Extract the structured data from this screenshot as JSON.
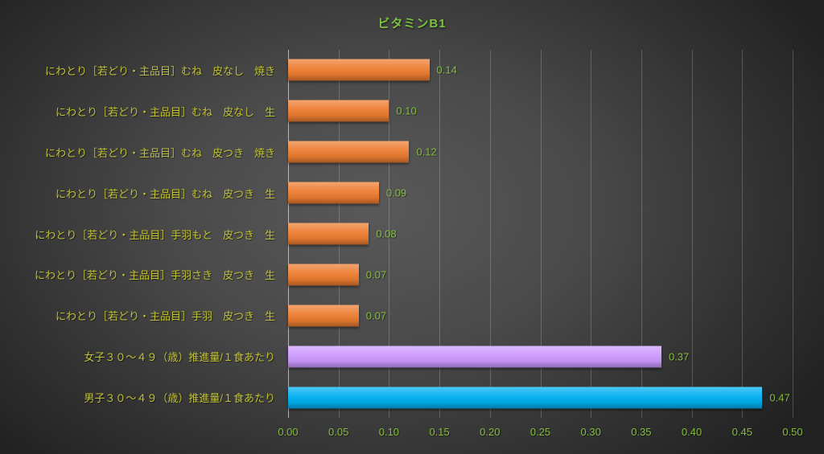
{
  "title": "ビタミンB1",
  "colors": {
    "title": "#7cc142",
    "category_label": "#c1c136",
    "value_label": "#84be3f",
    "tick_label": "#84be3f",
    "orange": "#ed7d31",
    "purple": "#cc99ff",
    "blue": "#00b0f0"
  },
  "chart_data": {
    "type": "bar",
    "orientation": "horizontal",
    "title": "ビタミンB1",
    "categories": [
      "にわとり［若どり・主品目］むね　皮なし　焼き",
      "にわとり［若どり・主品目］むね　皮なし　生",
      "にわとり［若どり・主品目］むね　皮つき　焼き",
      "にわとり［若どり・主品目］むね　皮つき　生",
      "にわとり［若どり・主品目］手羽もと　皮つき　生",
      "にわとり［若どり・主品目］手羽さき　皮つき　生",
      "にわとり［若どり・主品目］手羽　皮つき　生",
      "女子３０～４９（歳）推進量/１食あたり",
      "男子３０～４９（歳）推進量/１食あたり"
    ],
    "values": [
      0.14,
      0.1,
      0.12,
      0.09,
      0.08,
      0.07,
      0.07,
      0.37,
      0.47
    ],
    "value_labels": [
      "0.14",
      "0.10",
      "0.12",
      "0.09",
      "0.08",
      "0.07",
      "0.07",
      "0.37",
      "0.47"
    ],
    "bar_color_keys": [
      "orange",
      "orange",
      "orange",
      "orange",
      "orange",
      "orange",
      "orange",
      "purple",
      "blue"
    ],
    "xlim": [
      0,
      0.5
    ],
    "x_ticks": [
      "0.00",
      "0.05",
      "0.10",
      "0.15",
      "0.20",
      "0.25",
      "0.30",
      "0.35",
      "0.40",
      "0.45",
      "0.50"
    ],
    "xlabel": "",
    "ylabel": "",
    "grid": true,
    "legend": false
  }
}
